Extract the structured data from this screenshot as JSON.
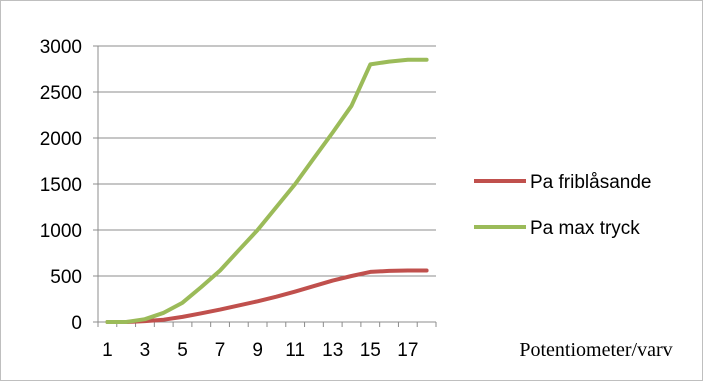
{
  "chart_data": {
    "type": "line",
    "title": "",
    "xlabel": "Potentiometer/varv",
    "ylabel": "",
    "x": [
      1,
      2,
      3,
      4,
      5,
      6,
      7,
      8,
      9,
      10,
      11,
      12,
      13,
      14,
      15,
      16,
      17,
      18
    ],
    "x_tick_labels": [
      "1",
      "3",
      "5",
      "7",
      "9",
      "11",
      "13",
      "15",
      "17"
    ],
    "y_tick_labels": [
      "0",
      "500",
      "1000",
      "1500",
      "2000",
      "2500",
      "3000"
    ],
    "ylim": [
      0,
      3000
    ],
    "grid": "horizontal",
    "legend_position": "right",
    "series": [
      {
        "name": "Pa friblåsande",
        "color": "#c0504d",
        "values": [
          0,
          0,
          10,
          25,
          55,
          95,
          135,
          180,
          225,
          275,
          330,
          390,
          450,
          500,
          545,
          555,
          560,
          560
        ]
      },
      {
        "name": "Pa max tryck",
        "color": "#9bbb59",
        "values": [
          0,
          0,
          30,
          100,
          210,
          380,
          560,
          780,
          1000,
          1250,
          1500,
          1780,
          2060,
          2350,
          2800,
          2830,
          2850,
          2850
        ]
      }
    ]
  }
}
